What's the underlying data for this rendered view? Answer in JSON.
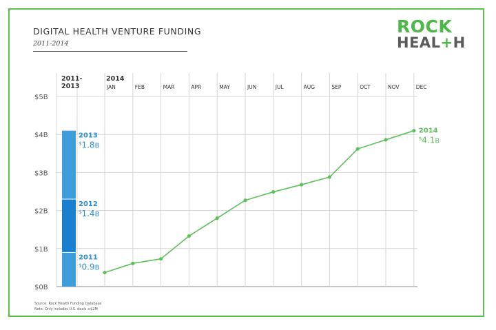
{
  "header": {
    "title": "DIGITAL HEALTH VENTURE FUNDING",
    "subtitle": "2011-2014"
  },
  "logo": {
    "line1": "ROCK",
    "line2_a": "HEAL",
    "line2_plus": "+",
    "line2_b": "H"
  },
  "footer": {
    "source": "Source: Rock Health Funding Database",
    "note": "Note: Only includes U.S. deals ≥$2M"
  },
  "colors": {
    "frame": "#5cc04a",
    "line": "#5dc15a",
    "bar_2013": "#3f9ddb",
    "bar_2012": "#1b7fd0",
    "bar_2011": "#3f9ddb",
    "label_blue": "#2d8fd5",
    "grid": "#d6d6d6"
  },
  "chart_data": [
    {
      "type": "bar",
      "header": [
        "2011-",
        "2013"
      ],
      "stacked": true,
      "series": [
        {
          "name": "2011",
          "value": 0.9,
          "value_prefix": "$",
          "value_num": "0.9",
          "value_suffix": "B"
        },
        {
          "name": "2012",
          "value": 1.4,
          "value_prefix": "$",
          "value_num": "1.4",
          "value_suffix": "B"
        },
        {
          "name": "2013",
          "value": 1.8,
          "value_prefix": "$",
          "value_num": "1.8",
          "value_suffix": "B"
        }
      ]
    },
    {
      "type": "line",
      "year_label": "2014",
      "categories": [
        "JAN",
        "FEB",
        "MAR",
        "APR",
        "MAY",
        "JUN",
        "JUL",
        "AUG",
        "SEP",
        "OCT",
        "NOV",
        "DEC"
      ],
      "series": [
        {
          "name": "2014",
          "values": [
            0.37,
            0.61,
            0.73,
            1.33,
            1.8,
            2.27,
            2.49,
            2.68,
            2.88,
            3.62,
            3.86,
            4.1
          ],
          "end_prefix": "$",
          "end_value": "4.1",
          "end_suffix": "B"
        }
      ],
      "ylim": [
        0,
        5
      ],
      "y_ticks": [
        "$0B",
        "$1B",
        "$2B",
        "$3B",
        "$4B",
        "$5B"
      ],
      "grid": true
    }
  ]
}
